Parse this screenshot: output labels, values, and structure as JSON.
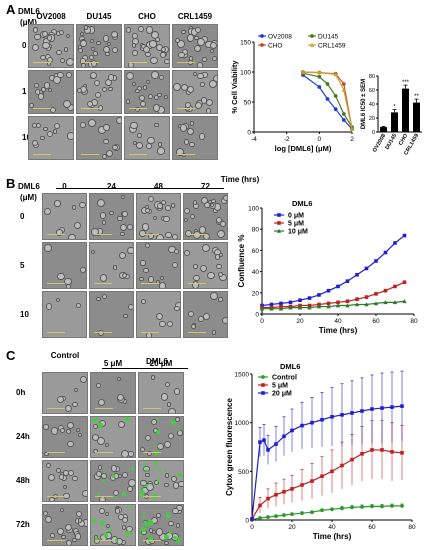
{
  "panelA": {
    "letter": "A",
    "treatment": "DML6",
    "unit": "(μM)",
    "columns": [
      "OV2008",
      "DU145",
      "CHO",
      "CRL1459"
    ],
    "rows": [
      "0",
      "1",
      "10"
    ],
    "viability": {
      "type": "line",
      "xlabel": "log [DML6] (μM)",
      "ylabel": "% Cell Viability",
      "xlim": [
        -4,
        2
      ],
      "ylim": [
        0,
        150
      ],
      "xticks": [
        "-4",
        "-2",
        "0",
        "2"
      ],
      "yticks": [
        "0",
        "50",
        "100",
        "150"
      ],
      "series": [
        {
          "name": "OV2008",
          "color": "#1f3fd6",
          "x": [
            -1,
            0,
            0.5,
            1,
            1.5,
            2
          ],
          "y": [
            95,
            75,
            55,
            38,
            20,
            5
          ]
        },
        {
          "name": "DU145",
          "color": "#4a7a2a",
          "x": [
            -1,
            0,
            0.5,
            1,
            1.5,
            2
          ],
          "y": [
            98,
            92,
            80,
            60,
            30,
            8
          ]
        },
        {
          "name": "CHO",
          "color": "#c0502b",
          "x": [
            -1,
            0,
            1,
            1.5,
            2
          ],
          "y": [
            100,
            99,
            97,
            80,
            5
          ]
        },
        {
          "name": "CRL1459",
          "color": "#c8a030",
          "x": [
            -1,
            0,
            1,
            1.5,
            2
          ],
          "y": [
            100,
            99,
            96,
            70,
            5
          ]
        }
      ]
    },
    "ic50": {
      "type": "bar",
      "ylabel": "DML6 IC50 ± SEM",
      "ylim": [
        0,
        80
      ],
      "yticks": [
        "0",
        "20",
        "40",
        "60",
        "80"
      ],
      "categories": [
        "OV2008",
        "DU145",
        "CHO",
        "CRL1459"
      ],
      "values": [
        7,
        28,
        62,
        42
      ],
      "errors": [
        1,
        4,
        5,
        5
      ],
      "significance": [
        "",
        "*",
        "***",
        "**"
      ]
    }
  },
  "panelB": {
    "letter": "B",
    "treatment": "DML6",
    "unit": "(μM)",
    "time_header": "Time (hrs)",
    "columns": [
      "0",
      "24",
      "48",
      "72"
    ],
    "rows": [
      "0",
      "5",
      "10"
    ],
    "confluence": {
      "type": "line",
      "title": "DML6",
      "xlabel": "Time (hrs)",
      "ylabel": "Confluence %",
      "xlim": [
        0,
        80
      ],
      "ylim": [
        0,
        100
      ],
      "xticks": [
        "0",
        "20",
        "40",
        "60",
        "80"
      ],
      "yticks": [
        "0",
        "20",
        "40",
        "60",
        "80",
        "100"
      ],
      "series": [
        {
          "name": "0 μM",
          "color": "#1f1fd0",
          "x": [
            0,
            5,
            10,
            15,
            20,
            25,
            30,
            35,
            40,
            45,
            50,
            55,
            60,
            65,
            70,
            75
          ],
          "y": [
            8,
            9,
            10,
            11,
            13,
            15,
            18,
            22,
            26,
            31,
            37,
            43,
            50,
            58,
            67,
            74
          ]
        },
        {
          "name": "5 μM",
          "color": "#c02020",
          "x": [
            0,
            5,
            10,
            15,
            20,
            25,
            30,
            35,
            40,
            45,
            50,
            55,
            60,
            65,
            70,
            75
          ],
          "y": [
            6,
            6,
            7,
            7,
            8,
            8,
            9,
            10,
            11,
            12,
            14,
            16,
            19,
            22,
            26,
            30
          ]
        },
        {
          "name": "10 μM",
          "color": "#2a7a2a",
          "x": [
            0,
            5,
            10,
            15,
            20,
            25,
            30,
            35,
            40,
            45,
            50,
            55,
            60,
            65,
            70,
            75
          ],
          "y": [
            5,
            5,
            5,
            6,
            6,
            6,
            7,
            7,
            8,
            8,
            9,
            9,
            10,
            11,
            11,
            12
          ]
        }
      ]
    }
  },
  "panelC": {
    "letter": "C",
    "treatment": "DML6",
    "columns": [
      "Control",
      "5 μM",
      "20 μM"
    ],
    "rows": [
      "0h",
      "24h",
      "48h",
      "72h"
    ],
    "cytox": {
      "type": "line",
      "title": "DML6",
      "xlabel": "Time (hrs)",
      "ylabel": "Cytox green fluorescence",
      "xlim": [
        0,
        80
      ],
      "ylim": [
        0,
        1500
      ],
      "xticks": [
        "0",
        "20",
        "40",
        "60",
        "80"
      ],
      "yticks": [
        "0",
        "500",
        "1000",
        "1500"
      ],
      "series": [
        {
          "name": "Control",
          "color": "#2a9a2a",
          "x": [
            0,
            4,
            8,
            12,
            16,
            20,
            25,
            30,
            35,
            40,
            45,
            50,
            55,
            60,
            65,
            70,
            75
          ],
          "y": [
            5,
            20,
            30,
            40,
            50,
            60,
            70,
            80,
            100,
            110,
            120,
            130,
            135,
            140,
            140,
            145,
            145
          ],
          "err": [
            5,
            10,
            10,
            10,
            12,
            12,
            15,
            15,
            15,
            15,
            20,
            20,
            20,
            20,
            20,
            20,
            20
          ]
        },
        {
          "name": "5 μM",
          "color": "#c02020",
          "x": [
            0,
            4,
            8,
            12,
            16,
            20,
            25,
            30,
            35,
            40,
            45,
            50,
            55,
            60,
            65,
            70,
            75
          ],
          "y": [
            10,
            150,
            220,
            260,
            290,
            320,
            360,
            400,
            450,
            500,
            560,
            620,
            680,
            720,
            720,
            700,
            690
          ],
          "err": [
            10,
            80,
            100,
            120,
            130,
            140,
            160,
            180,
            200,
            220,
            240,
            260,
            280,
            300,
            300,
            300,
            280
          ]
        },
        {
          "name": "20 μM",
          "color": "#1f1fd0",
          "x": [
            0,
            4,
            6,
            8,
            12,
            16,
            20,
            25,
            30,
            35,
            40,
            45,
            50,
            55,
            60,
            65,
            70,
            75
          ],
          "y": [
            10,
            800,
            820,
            720,
            780,
            860,
            920,
            970,
            1000,
            1030,
            1060,
            1080,
            1100,
            1120,
            1140,
            1150,
            1160,
            1170
          ],
          "err": [
            10,
            150,
            160,
            150,
            180,
            200,
            220,
            240,
            260,
            280,
            300,
            320,
            330,
            340,
            350,
            360,
            360,
            360
          ]
        }
      ]
    }
  }
}
